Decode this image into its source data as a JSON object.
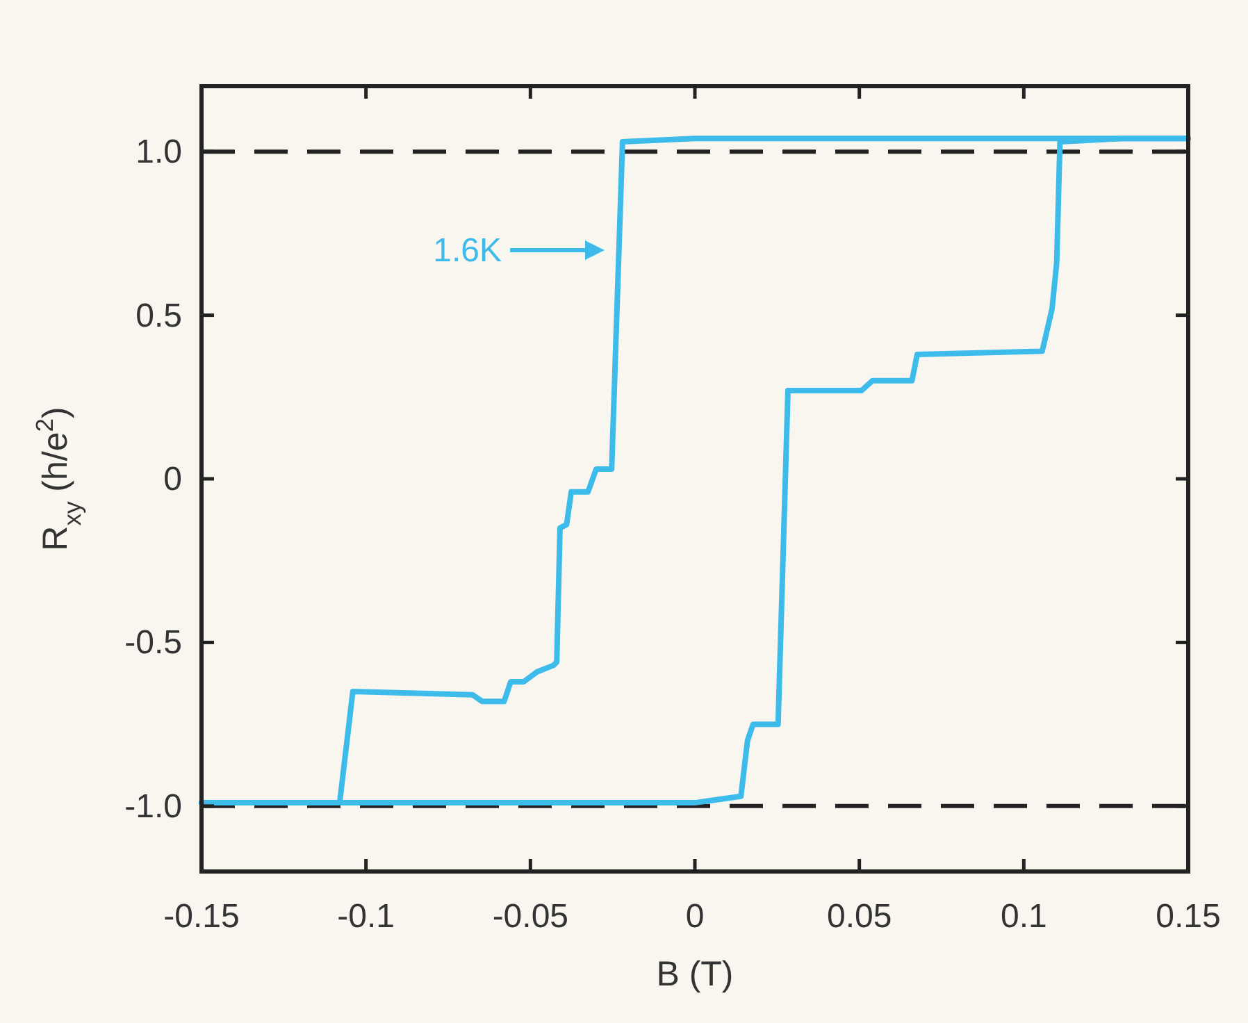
{
  "chart_data": {
    "type": "line",
    "xlabel": "B (T)",
    "ylabel": "R$_{xy}$ (h/e$^{2}$)",
    "xlim": [
      -0.15,
      0.15
    ],
    "xticks": [
      -0.15,
      -0.1,
      -0.05,
      0,
      0.05,
      0.1,
      0.15
    ],
    "ylim": [
      -1.2,
      1.2
    ],
    "yticks": [
      {
        "value": -1,
        "label": "-1.0"
      },
      {
        "value": -0.5,
        "label": "-0.5"
      },
      {
        "value": 0,
        "label": "0"
      },
      {
        "value": 0.5,
        "label": "0.5"
      },
      {
        "value": 1,
        "label": "1.0"
      }
    ],
    "grid": false,
    "line_style": "solid",
    "marker": "none",
    "series": [
      {
        "color": "#3dbbea",
        "x": [
          0.15,
          0.1,
          0.05,
          0,
          -0.022,
          -0.0253,
          -0.03,
          -0.0325,
          -0.0376,
          -0.039,
          -0.041,
          -0.042,
          -0.043,
          -0.048,
          -0.052,
          -0.056,
          -0.058,
          -0.0647,
          -0.0676,
          -0.104,
          -0.108,
          -0.13,
          -0.15
        ],
        "values": [
          1.04,
          1.04,
          1.04,
          1.04,
          1.03,
          0.03,
          0.03,
          -0.04,
          -0.04,
          -0.14,
          -0.15,
          -0.56,
          -0.57,
          -0.59,
          -0.62,
          -0.62,
          -0.68,
          -0.68,
          -0.66,
          -0.65,
          -0.99,
          -0.99,
          -0.99
        ]
      },
      {
        "color": "#3dbbea",
        "x": [
          -0.15,
          -0.1,
          -0.05,
          0,
          0.014,
          0.016,
          0.0177,
          0.0253,
          0.0283,
          0.0507,
          0.054,
          0.066,
          0.0676,
          0.1056,
          0.1086,
          0.11,
          0.111,
          0.13,
          0.15
        ],
        "values": [
          -0.99,
          -0.99,
          -0.99,
          -0.99,
          -0.97,
          -0.8,
          -0.75,
          -0.75,
          0.27,
          0.27,
          0.3,
          0.3,
          0.38,
          0.39,
          0.52,
          0.66,
          1.03,
          1.04,
          1.04
        ]
      }
    ],
    "ref_lines": [
      {
        "axis": "y",
        "value": 1,
        "color": "#222222",
        "line_style": "dashed"
      },
      {
        "axis": "y",
        "value": -1,
        "color": "#222222",
        "line_style": "dashed"
      }
    ],
    "annotations": [
      "1.6K"
    ]
  }
}
